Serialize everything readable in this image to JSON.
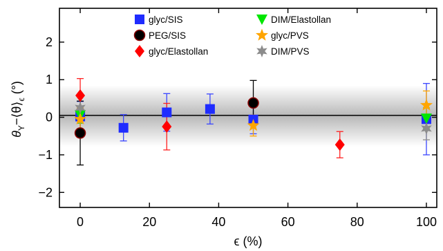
{
  "chart_data": {
    "type": "scatter",
    "title": "",
    "xlabel": "ϵ (%)",
    "ylabel_parts": {
      "theta": "θ",
      "sub": "Y",
      "minus": "−⟨θ",
      "close": "⟩",
      "sub2": "ϵ",
      "unit": " (°)"
    },
    "xlim": [
      -6,
      103
    ],
    "ylim": [
      -2.4,
      2.9
    ],
    "xticks": [
      0,
      20,
      40,
      60,
      80,
      100
    ],
    "yticks": [
      -2,
      -1,
      0,
      1,
      2
    ],
    "xtick_labels": [
      "0",
      "20",
      "40",
      "60",
      "80",
      "100"
    ],
    "ytick_labels": [
      "−2",
      "−1",
      "0",
      "1",
      "2"
    ],
    "grid": false,
    "legend_placement": "top",
    "band": {
      "ylow": -0.78,
      "yhigh": 0.85,
      "color": "#bdbdbd"
    },
    "reference_line": {
      "y": 0.05,
      "color": "#000000"
    },
    "series": [
      {
        "name": "glyc/SIS",
        "color": "#1f2cff",
        "marker": "square",
        "x": [
          0,
          12.5,
          25,
          37.5,
          50,
          100
        ],
        "y": [
          0.02,
          -0.28,
          0.13,
          0.22,
          -0.06,
          -0.05
        ],
        "err": [
          0.4,
          0.35,
          0.5,
          0.4,
          0.38,
          0.95
        ],
        "err_color": "#3a46ff"
      },
      {
        "name": "PEG/SIS",
        "color": "#000000",
        "marker": "circle",
        "x": [
          0,
          50
        ],
        "y": [
          -0.42,
          0.38
        ],
        "err": [
          0.85,
          0.6
        ],
        "err_color": "#000000",
        "edge_color": "#8b0000"
      },
      {
        "name": "glyc/Elastollan",
        "color": "#ff0000",
        "marker": "diamond",
        "x": [
          0,
          25,
          75
        ],
        "y": [
          0.58,
          -0.25,
          -0.73
        ],
        "err": [
          0.45,
          0.62,
          0.35
        ],
        "err_color": "#ff2020"
      },
      {
        "name": "DIM/Elastollan",
        "color": "#00e600",
        "marker": "triangle-down",
        "x": [
          0,
          100
        ],
        "y": [
          0.06,
          -0.03
        ],
        "err": [
          0.22,
          0.28
        ],
        "err_color": "#33cc33"
      },
      {
        "name": "glyc/PVS",
        "color": "#ffa500",
        "marker": "star5",
        "x": [
          0,
          50,
          100
        ],
        "y": [
          -0.05,
          -0.22,
          0.32
        ],
        "err": [
          0.3,
          0.28,
          0.38
        ],
        "err_color": "#ffa500"
      },
      {
        "name": "DIM/PVS",
        "color": "#8c8c8c",
        "marker": "star6",
        "x": [
          0,
          100
        ],
        "y": [
          0.25,
          -0.3
        ],
        "err": [
          0.3,
          0.3
        ],
        "err_color": "#8c8c8c"
      }
    ],
    "legend_columns": [
      [
        0,
        1,
        2
      ],
      [
        3,
        4,
        5
      ]
    ]
  }
}
